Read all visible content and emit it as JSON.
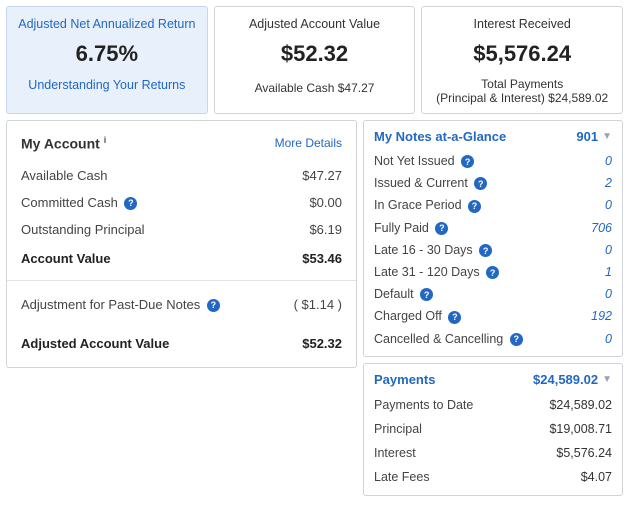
{
  "top": {
    "returnCard": {
      "label": "Adjusted Net Annualized Return",
      "value": "6.75%",
      "link": "Understanding Your Returns"
    },
    "valueCard": {
      "label": "Adjusted Account Value",
      "value": "$52.32",
      "sub": "Available Cash $47.27"
    },
    "interestCard": {
      "label": "Interest Received",
      "value": "$5,576.24",
      "subLabel": "Total Payments",
      "subText": "(Principal & Interest) $24,589.02"
    }
  },
  "account": {
    "title": "My Account",
    "sup": "i",
    "moreDetails": "More Details",
    "rows": [
      {
        "label": "Available Cash",
        "value": "$47.27",
        "help": false
      },
      {
        "label": "Committed Cash",
        "value": "$0.00",
        "help": true
      },
      {
        "label": "Outstanding Principal",
        "value": "$6.19",
        "help": false
      }
    ],
    "accountValue": {
      "label": "Account Value",
      "value": "$53.46"
    },
    "adjustment": {
      "label": "Adjustment for Past-Due Notes",
      "value": "( $1.14 )",
      "help": true
    },
    "adjusted": {
      "label": "Adjusted Account Value",
      "value": "$52.32"
    }
  },
  "notes": {
    "title": "My Notes at-a-Glance",
    "count": "901",
    "rows": [
      {
        "label": "Not Yet Issued",
        "value": "0"
      },
      {
        "label": "Issued & Current",
        "value": "2"
      },
      {
        "label": "In Grace Period",
        "value": "0"
      },
      {
        "label": "Fully Paid",
        "value": "706"
      },
      {
        "label": "Late 16 - 30 Days",
        "value": "0"
      },
      {
        "label": "Late 31 - 120 Days",
        "value": "1"
      },
      {
        "label": "Default",
        "value": "0"
      },
      {
        "label": "Charged Off",
        "value": "192"
      },
      {
        "label": "Cancelled & Cancelling",
        "value": "0"
      }
    ]
  },
  "payments": {
    "title": "Payments",
    "total": "$24,589.02",
    "rows": [
      {
        "label": "Payments to Date",
        "value": "$24,589.02"
      },
      {
        "label": "Principal",
        "value": "$19,008.71"
      },
      {
        "label": "Interest",
        "value": "$5,576.24"
      },
      {
        "label": "Late Fees",
        "value": "$4.07"
      }
    ]
  }
}
